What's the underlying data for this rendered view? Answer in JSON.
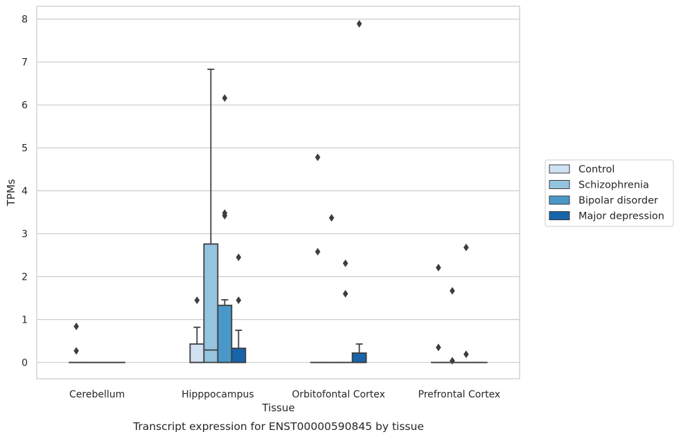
{
  "caption": "Transcript expression for ENST00000590845 by tissue",
  "chart_data": {
    "type": "box",
    "xlabel": "Tissue",
    "ylabel": "TPMs",
    "ylim": [
      -0.38,
      8.3
    ],
    "yticks": [
      0,
      1,
      2,
      3,
      4,
      5,
      6,
      7,
      8
    ],
    "grid": "horizontal",
    "legend_position": "right-center",
    "categories": [
      "Cerebellum",
      "Hipppocampus",
      "Orbitofontal Cortex",
      "Prefrontal Cortex"
    ],
    "series": [
      {
        "name": "Control",
        "color": "#d0e1f2",
        "boxes": [
          {
            "min": 0,
            "q1": 0,
            "median": 0,
            "q3": 0,
            "max": 0,
            "outliers": [
              0.84,
              0.27
            ]
          },
          {
            "min": 0,
            "q1": 0,
            "median": 0,
            "q3": 0.43,
            "max": 0.82,
            "outliers": [
              1.45
            ]
          },
          {
            "min": 0,
            "q1": 0,
            "median": 0,
            "q3": 0,
            "max": 0,
            "outliers": [
              4.78,
              2.58
            ]
          },
          {
            "min": 0,
            "q1": 0,
            "median": 0,
            "q3": 0,
            "max": 0,
            "outliers": [
              2.21,
              0.35
            ]
          }
        ]
      },
      {
        "name": "Schizophrenia",
        "color": "#94c4df",
        "boxes": [
          {
            "min": 0,
            "q1": 0,
            "median": 0,
            "q3": 0,
            "max": 0,
            "outliers": []
          },
          {
            "min": 0,
            "q1": 0,
            "median": 0.29,
            "q3": 2.76,
            "max": 6.83,
            "outliers": []
          },
          {
            "min": 0,
            "q1": 0,
            "median": 0,
            "q3": 0,
            "max": 0,
            "outliers": [
              3.37
            ]
          },
          {
            "min": 0,
            "q1": 0,
            "median": 0,
            "q3": 0,
            "max": 0,
            "outliers": [
              1.67,
              0.04
            ]
          }
        ]
      },
      {
        "name": "Bipolar disorder",
        "color": "#4a98c9",
        "boxes": [
          {
            "min": 0,
            "q1": 0,
            "median": 0,
            "q3": 0,
            "max": 0,
            "outliers": []
          },
          {
            "min": 0,
            "q1": 0,
            "median": 0,
            "q3": 1.33,
            "max": 1.46,
            "outliers": [
              6.16,
              3.48,
              3.42
            ]
          },
          {
            "min": 0,
            "q1": 0,
            "median": 0,
            "q3": 0,
            "max": 0,
            "outliers": [
              2.31,
              1.6
            ]
          },
          {
            "min": 0,
            "q1": 0,
            "median": 0,
            "q3": 0,
            "max": 0,
            "outliers": [
              2.68,
              0.19
            ]
          }
        ]
      },
      {
        "name": "Major depression",
        "color": "#1764ab",
        "boxes": [
          {
            "min": 0,
            "q1": 0,
            "median": 0,
            "q3": 0,
            "max": 0,
            "outliers": []
          },
          {
            "min": 0,
            "q1": 0,
            "median": 0,
            "q3": 0.33,
            "max": 0.75,
            "outliers": [
              2.45,
              1.45
            ]
          },
          {
            "min": 0,
            "q1": 0,
            "median": 0,
            "q3": 0.22,
            "max": 0.43,
            "outliers": [
              7.89
            ]
          },
          {
            "min": 0,
            "q1": 0,
            "median": 0,
            "q3": 0,
            "max": 0,
            "outliers": []
          }
        ]
      }
    ]
  }
}
